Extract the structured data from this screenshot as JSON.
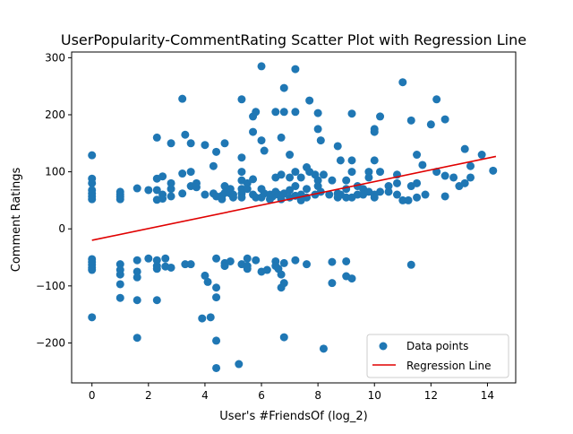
{
  "chart_data": {
    "type": "scatter",
    "title": "UserPopularity-CommentRating Scatter Plot with Regression Line",
    "xlabel": "User's #FriendsOf (log_2)",
    "ylabel": "Comment Ratings",
    "xlim": [
      -0.72,
      15.0
    ],
    "ylim": [
      -270,
      310
    ],
    "xticks": [
      0,
      2,
      4,
      6,
      8,
      10,
      12,
      14
    ],
    "yticks": [
      -200,
      -100,
      0,
      100,
      200,
      300
    ],
    "grid": false,
    "legend_position": "lower-right",
    "colors": {
      "points": "#1f77b4",
      "regression": "#e00000"
    },
    "series": [
      {
        "name": "Data points",
        "type": "scatter",
        "points": [
          [
            0,
            129
          ],
          [
            0,
            88
          ],
          [
            0,
            80
          ],
          [
            0,
            68
          ],
          [
            0,
            62
          ],
          [
            0,
            57
          ],
          [
            0,
            52
          ],
          [
            0,
            -53
          ],
          [
            0,
            -58
          ],
          [
            0,
            -63
          ],
          [
            0,
            -68
          ],
          [
            0,
            -72
          ],
          [
            0,
            -155
          ],
          [
            1,
            65
          ],
          [
            1,
            60
          ],
          [
            1,
            56
          ],
          [
            1,
            52
          ],
          [
            1,
            -62
          ],
          [
            1,
            -72
          ],
          [
            1,
            -80
          ],
          [
            1,
            -97
          ],
          [
            1,
            -121
          ],
          [
            1.6,
            71
          ],
          [
            1.6,
            -55
          ],
          [
            1.6,
            -75
          ],
          [
            1.6,
            -85
          ],
          [
            1.6,
            -125
          ],
          [
            1.6,
            -191
          ],
          [
            2.0,
            68
          ],
          [
            2.0,
            -52
          ],
          [
            2.3,
            160
          ],
          [
            2.3,
            88
          ],
          [
            2.3,
            68
          ],
          [
            2.3,
            51
          ],
          [
            2.3,
            -55
          ],
          [
            2.3,
            -65
          ],
          [
            2.3,
            -70
          ],
          [
            2.3,
            -125
          ],
          [
            2.5,
            92
          ],
          [
            2.5,
            60
          ],
          [
            2.5,
            53
          ],
          [
            2.6,
            -52
          ],
          [
            2.6,
            -66
          ],
          [
            2.8,
            150
          ],
          [
            2.8,
            80
          ],
          [
            2.8,
            70
          ],
          [
            2.8,
            57
          ],
          [
            2.8,
            -68
          ],
          [
            3.2,
            228
          ],
          [
            3.2,
            97
          ],
          [
            3.2,
            62
          ],
          [
            3.3,
            165
          ],
          [
            3.3,
            -62
          ],
          [
            3.5,
            150
          ],
          [
            3.5,
            100
          ],
          [
            3.5,
            75
          ],
          [
            3.5,
            -62
          ],
          [
            3.7,
            80
          ],
          [
            3.7,
            73
          ],
          [
            3.9,
            -157
          ],
          [
            4.0,
            147
          ],
          [
            4.0,
            60
          ],
          [
            4.0,
            -82
          ],
          [
            4.1,
            -93
          ],
          [
            4.2,
            -155
          ],
          [
            4.3,
            110
          ],
          [
            4.3,
            62
          ],
          [
            4.4,
            135
          ],
          [
            4.4,
            57
          ],
          [
            4.4,
            -52
          ],
          [
            4.4,
            -103
          ],
          [
            4.4,
            -120
          ],
          [
            4.4,
            -196
          ],
          [
            4.4,
            -244
          ],
          [
            4.6,
            58
          ],
          [
            4.6,
            52
          ],
          [
            4.7,
            150
          ],
          [
            4.7,
            75
          ],
          [
            4.7,
            63
          ],
          [
            4.7,
            -60
          ],
          [
            4.7,
            -65
          ],
          [
            4.9,
            70
          ],
          [
            4.9,
            62
          ],
          [
            4.9,
            -57
          ],
          [
            5.0,
            60
          ],
          [
            5.0,
            55
          ],
          [
            5.2,
            -237
          ],
          [
            5.3,
            227
          ],
          [
            5.3,
            125
          ],
          [
            5.3,
            100
          ],
          [
            5.3,
            85
          ],
          [
            5.3,
            70
          ],
          [
            5.3,
            62
          ],
          [
            5.3,
            55
          ],
          [
            5.3,
            -62
          ],
          [
            5.5,
            80
          ],
          [
            5.5,
            70
          ],
          [
            5.5,
            -52
          ],
          [
            5.5,
            -65
          ],
          [
            5.5,
            -70
          ],
          [
            5.7,
            197
          ],
          [
            5.7,
            170
          ],
          [
            5.7,
            87
          ],
          [
            5.7,
            60
          ],
          [
            5.8,
            205
          ],
          [
            5.8,
            55
          ],
          [
            5.8,
            -55
          ],
          [
            6.0,
            285
          ],
          [
            6.0,
            155
          ],
          [
            6.0,
            70
          ],
          [
            6.0,
            55
          ],
          [
            6.0,
            -75
          ],
          [
            6.1,
            137
          ],
          [
            6.1,
            62
          ],
          [
            6.2,
            -72
          ],
          [
            6.3,
            60
          ],
          [
            6.3,
            52
          ],
          [
            6.4,
            57
          ],
          [
            6.5,
            205
          ],
          [
            6.5,
            90
          ],
          [
            6.5,
            65
          ],
          [
            6.5,
            -57
          ],
          [
            6.5,
            -65
          ],
          [
            6.6,
            60
          ],
          [
            6.6,
            -70
          ],
          [
            6.7,
            160
          ],
          [
            6.7,
            95
          ],
          [
            6.7,
            52
          ],
          [
            6.7,
            -80
          ],
          [
            6.7,
            -103
          ],
          [
            6.8,
            247
          ],
          [
            6.8,
            205
          ],
          [
            6.8,
            62
          ],
          [
            6.8,
            -60
          ],
          [
            6.8,
            -95
          ],
          [
            6.8,
            -190
          ],
          [
            7.0,
            130
          ],
          [
            7.0,
            90
          ],
          [
            7.0,
            68
          ],
          [
            7.0,
            55
          ],
          [
            7.2,
            280
          ],
          [
            7.2,
            205
          ],
          [
            7.2,
            100
          ],
          [
            7.2,
            75
          ],
          [
            7.2,
            58
          ],
          [
            7.2,
            -55
          ],
          [
            7.4,
            90
          ],
          [
            7.4,
            60
          ],
          [
            7.4,
            50
          ],
          [
            7.6,
            108
          ],
          [
            7.6,
            70
          ],
          [
            7.6,
            55
          ],
          [
            7.6,
            -62
          ],
          [
            7.7,
            225
          ],
          [
            7.7,
            100
          ],
          [
            7.9,
            95
          ],
          [
            7.9,
            60
          ],
          [
            8.0,
            203
          ],
          [
            8.0,
            175
          ],
          [
            8.0,
            85
          ],
          [
            8.0,
            75
          ],
          [
            8.1,
            155
          ],
          [
            8.1,
            65
          ],
          [
            8.2,
            95
          ],
          [
            8.2,
            -210
          ],
          [
            8.4,
            60
          ],
          [
            8.5,
            85
          ],
          [
            8.5,
            -58
          ],
          [
            8.5,
            -95
          ],
          [
            8.7,
            145
          ],
          [
            8.7,
            62
          ],
          [
            8.7,
            55
          ],
          [
            8.8,
            120
          ],
          [
            8.8,
            60
          ],
          [
            9.0,
            85
          ],
          [
            9.0,
            70
          ],
          [
            9.0,
            55
          ],
          [
            9.0,
            -57
          ],
          [
            9.0,
            -83
          ],
          [
            9.2,
            202
          ],
          [
            9.2,
            120
          ],
          [
            9.2,
            100
          ],
          [
            9.2,
            55
          ],
          [
            9.2,
            -87
          ],
          [
            9.4,
            75
          ],
          [
            9.4,
            60
          ],
          [
            9.6,
            70
          ],
          [
            9.6,
            60
          ],
          [
            9.8,
            100
          ],
          [
            9.8,
            90
          ],
          [
            9.8,
            65
          ],
          [
            10.0,
            175
          ],
          [
            10.0,
            170
          ],
          [
            10.0,
            120
          ],
          [
            10.0,
            60
          ],
          [
            10.0,
            55
          ],
          [
            10.2,
            197
          ],
          [
            10.2,
            100
          ],
          [
            10.2,
            65
          ],
          [
            10.5,
            75
          ],
          [
            10.5,
            65
          ],
          [
            10.8,
            95
          ],
          [
            10.8,
            80
          ],
          [
            10.8,
            60
          ],
          [
            11.0,
            257
          ],
          [
            11.0,
            50
          ],
          [
            11.2,
            50
          ],
          [
            11.3,
            190
          ],
          [
            11.3,
            75
          ],
          [
            11.3,
            -63
          ],
          [
            11.5,
            130
          ],
          [
            11.5,
            80
          ],
          [
            11.5,
            55
          ],
          [
            11.7,
            112
          ],
          [
            11.8,
            60
          ],
          [
            12.0,
            183
          ],
          [
            12.2,
            227
          ],
          [
            12.2,
            100
          ],
          [
            12.5,
            192
          ],
          [
            12.5,
            93
          ],
          [
            12.5,
            57
          ],
          [
            12.8,
            90
          ],
          [
            13.0,
            75
          ],
          [
            13.2,
            140
          ],
          [
            13.2,
            80
          ],
          [
            13.4,
            110
          ],
          [
            13.4,
            90
          ],
          [
            13.8,
            130
          ],
          [
            14.2,
            102
          ]
        ]
      },
      {
        "name": "Regression Line",
        "type": "line",
        "points": [
          [
            0,
            -20
          ],
          [
            14.3,
            127
          ]
        ]
      }
    ]
  }
}
